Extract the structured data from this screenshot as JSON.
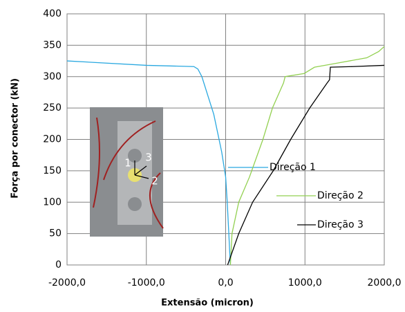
{
  "chart_data": {
    "type": "line",
    "xlabel": "Extensão (micron)",
    "ylabel": "Força por conector (kN)",
    "xlim": [
      -2000,
      2000
    ],
    "xticks": [
      {
        "value": -2000,
        "label": "-2000,0"
      },
      {
        "value": -1000,
        "label": "-1000,0"
      },
      {
        "value": 0,
        "label": "0,0"
      },
      {
        "value": 1000,
        "label": "1000,0"
      },
      {
        "value": 2000,
        "label": "2000,0"
      }
    ],
    "ylim": [
      0,
      400
    ],
    "yticks": [
      0,
      50,
      100,
      150,
      200,
      250,
      300,
      350,
      400
    ],
    "grid": true,
    "legend": "inline",
    "inset_labels": [
      "1",
      "3",
      "2"
    ],
    "series": [
      {
        "name": "Direção 1",
        "color": "#29a8e0",
        "x": [
          -2000,
          -1000,
          -400,
          -350,
          -300,
          -250,
          -200,
          -150,
          -100,
          -50,
          0,
          20,
          40,
          55,
          60
        ],
        "values": [
          325,
          318,
          316,
          312,
          300,
          280,
          260,
          240,
          210,
          180,
          140,
          100,
          50,
          10,
          0
        ]
      },
      {
        "name": "Direção 2",
        "color": "#92d050",
        "x": [
          60,
          80,
          165,
          300,
          470,
          590,
          730,
          750,
          990,
          1120,
          1340,
          1780,
          1930,
          2000
        ],
        "values": [
          0,
          50,
          100,
          140,
          200,
          250,
          290,
          300,
          305,
          315,
          320,
          330,
          340,
          348
        ]
      },
      {
        "name": "Direção 3",
        "color": "#000000",
        "x": [
          25,
          165,
          340,
          600,
          820,
          1060,
          1280,
          1310,
          1320,
          1600,
          2000
        ],
        "values": [
          0,
          50,
          100,
          150,
          200,
          250,
          290,
          295,
          315,
          316,
          318
        ]
      }
    ]
  }
}
